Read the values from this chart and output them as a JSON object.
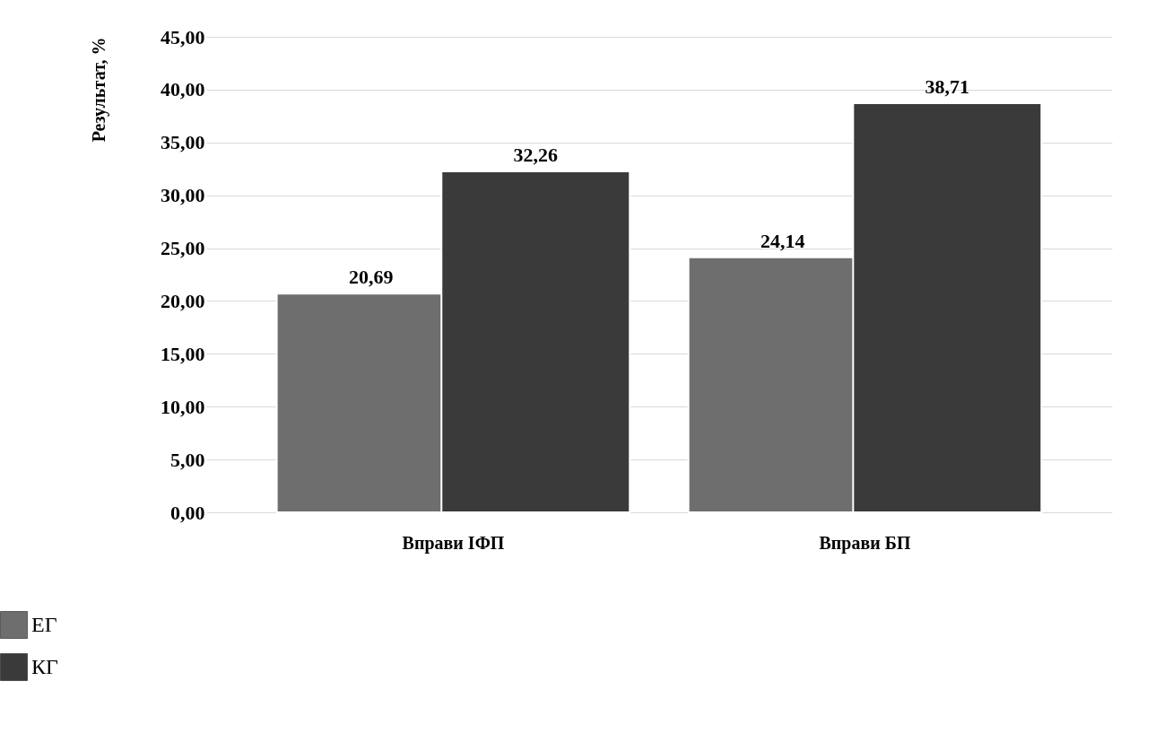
{
  "chart_data": {
    "type": "bar",
    "ylabel": "Результат, %",
    "categories": [
      "Вправи ІФП",
      "Вправи БП"
    ],
    "series": [
      {
        "name": "ЕГ",
        "color": "#6e6e6e",
        "values": [
          20.69,
          24.14
        ],
        "value_labels": [
          "20,69",
          "24,14"
        ]
      },
      {
        "name": "КГ",
        "color": "#3a3a3a",
        "values": [
          32.26,
          38.71
        ],
        "value_labels": [
          "32,26",
          "38,71"
        ]
      }
    ],
    "ylim": [
      0,
      45
    ],
    "yticks": [
      {
        "value": 0,
        "label": "0,00"
      },
      {
        "value": 5,
        "label": "5,00"
      },
      {
        "value": 10,
        "label": "10,00"
      },
      {
        "value": 15,
        "label": "15,00"
      },
      {
        "value": 20,
        "label": "20,00"
      },
      {
        "value": 25,
        "label": "25,00"
      },
      {
        "value": 30,
        "label": "30,00"
      },
      {
        "value": 35,
        "label": "35,00"
      },
      {
        "value": 40,
        "label": "40,00"
      },
      {
        "value": 45,
        "label": "45,00"
      }
    ],
    "grid": "y",
    "legend": "bottom left"
  }
}
